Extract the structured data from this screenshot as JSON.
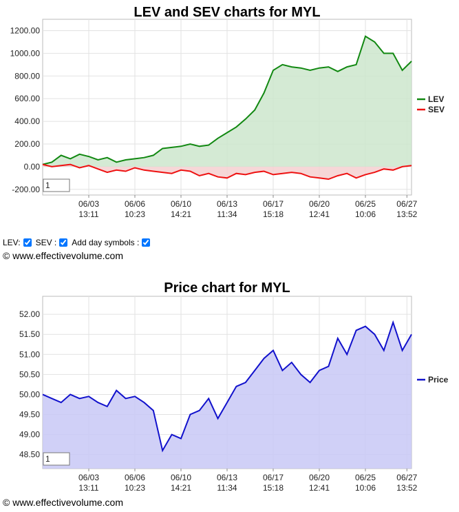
{
  "chart_data": [
    {
      "type": "line",
      "title": "LEV and SEV charts for MYL",
      "legend": "right",
      "grid": true,
      "fill": "zero",
      "zoom": "1",
      "x": [
        0,
        1,
        2,
        3,
        4,
        5,
        6,
        7,
        8,
        9,
        10,
        11,
        12,
        13,
        14,
        15,
        16,
        17,
        18,
        19,
        20,
        21,
        22,
        23,
        24,
        25,
        26,
        27,
        28,
        29,
        30,
        31,
        32,
        33,
        34,
        35,
        36,
        37,
        38,
        39,
        40
      ],
      "xlim": [
        0,
        40
      ],
      "xticks": [
        {
          "value": 5,
          "label": "06/03 13:11"
        },
        {
          "value": 10,
          "label": "06/06 10:23"
        },
        {
          "value": 15,
          "label": "06/10 14:21"
        },
        {
          "value": 20,
          "label": "06/13 11:34"
        },
        {
          "value": 25,
          "label": "06/17 15:18"
        },
        {
          "value": 30,
          "label": "06/20 12:41"
        },
        {
          "value": 35,
          "label": "06/25 10:06"
        },
        {
          "value": 39.5,
          "label": "06/27 13:52"
        }
      ],
      "ylim": [
        -250,
        1300
      ],
      "yticks": [
        {
          "value": -200,
          "label": "-200.00"
        },
        {
          "value": 0,
          "label": "0.00"
        },
        {
          "value": 200,
          "label": "200.00"
        },
        {
          "value": 400,
          "label": "400.00"
        },
        {
          "value": 600,
          "label": "600.00"
        },
        {
          "value": 800,
          "label": "800.00"
        },
        {
          "value": 1000,
          "label": "1000.00"
        },
        {
          "value": 1200,
          "label": "1200.00"
        }
      ],
      "series": [
        {
          "name": "LEV",
          "color": "#118811",
          "fillColor": "#cde6cd",
          "values": [
            20,
            40,
            100,
            70,
            110,
            90,
            60,
            80,
            40,
            60,
            70,
            80,
            100,
            160,
            170,
            180,
            200,
            180,
            190,
            250,
            300,
            350,
            420,
            500,
            650,
            850,
            900,
            880,
            870,
            850,
            870,
            880,
            840,
            880,
            900,
            1150,
            1100,
            1000,
            1000,
            850,
            930
          ]
        },
        {
          "name": "SEV",
          "color": "#ee1111",
          "fillColor": "#f4d0d0",
          "values": [
            20,
            0,
            10,
            20,
            -10,
            10,
            -20,
            -50,
            -30,
            -40,
            -10,
            -30,
            -40,
            -50,
            -60,
            -30,
            -40,
            -80,
            -60,
            -90,
            -100,
            -60,
            -70,
            -50,
            -40,
            -70,
            -60,
            -50,
            -60,
            -90,
            -100,
            -110,
            -80,
            -60,
            -100,
            -70,
            -50,
            -20,
            -30,
            0,
            10
          ]
        }
      ],
      "source": "© www.effectivevolume.com"
    },
    {
      "type": "line",
      "title": "Price chart for MYL",
      "legend": "right",
      "grid": true,
      "fill": "bottom",
      "zoom": "1",
      "x": [
        0,
        1,
        2,
        3,
        4,
        5,
        6,
        7,
        8,
        9,
        10,
        11,
        12,
        13,
        14,
        15,
        16,
        17,
        18,
        19,
        20,
        21,
        22,
        23,
        24,
        25,
        26,
        27,
        28,
        29,
        30,
        31,
        32,
        33,
        34,
        35,
        36,
        37,
        38,
        39,
        40
      ],
      "xlim": [
        0,
        40
      ],
      "xticks": [
        {
          "value": 5,
          "label": "06/03 13:11"
        },
        {
          "value": 10,
          "label": "06/06 10:23"
        },
        {
          "value": 15,
          "label": "06/10 14:21"
        },
        {
          "value": 20,
          "label": "06/13 11:34"
        },
        {
          "value": 25,
          "label": "06/17 15:18"
        },
        {
          "value": 30,
          "label": "06/20 12:41"
        },
        {
          "value": 35,
          "label": "06/25 10:06"
        },
        {
          "value": 39.5,
          "label": "06/27 13:52"
        }
      ],
      "ylim": [
        48.15,
        52.45
      ],
      "yticks": [
        {
          "value": 48.5,
          "label": "48.50"
        },
        {
          "value": 49,
          "label": "49.00"
        },
        {
          "value": 49.5,
          "label": "49.50"
        },
        {
          "value": 50,
          "label": "50.00"
        },
        {
          "value": 50.5,
          "label": "50.50"
        },
        {
          "value": 51,
          "label": "51.00"
        },
        {
          "value": 51.5,
          "label": "51.50"
        },
        {
          "value": 52,
          "label": "52.00"
        }
      ],
      "series": [
        {
          "name": "Price",
          "color": "#1111cc",
          "fillColor": "#c8c8f6",
          "values": [
            50.0,
            49.9,
            49.8,
            50.0,
            49.9,
            49.95,
            49.8,
            49.7,
            50.1,
            49.9,
            49.95,
            49.8,
            49.6,
            48.6,
            49.0,
            48.9,
            49.5,
            49.6,
            49.9,
            49.4,
            49.8,
            50.2,
            50.3,
            50.6,
            50.9,
            51.1,
            50.6,
            50.8,
            50.5,
            50.3,
            50.6,
            50.7,
            51.4,
            51.0,
            51.6,
            51.7,
            51.5,
            51.1,
            51.8,
            51.1,
            51.5
          ]
        }
      ],
      "source": "© www.effectivevolume.com"
    }
  ],
  "controls": [
    "LEV:",
    "SEV :",
    "Add day symbols :"
  ]
}
